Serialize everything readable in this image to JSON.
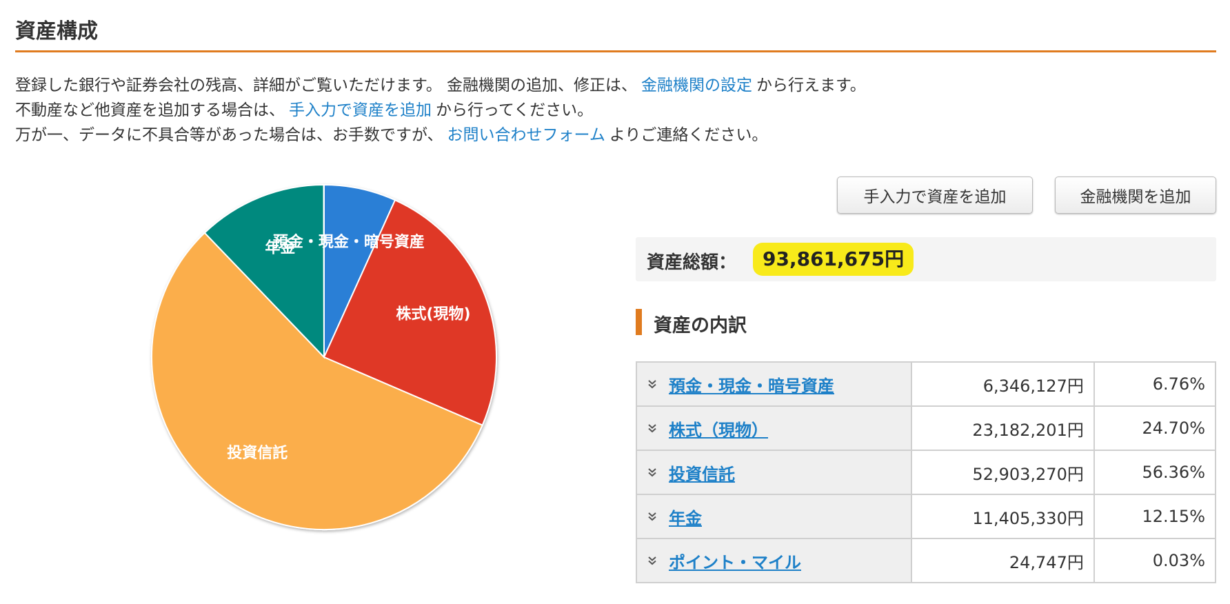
{
  "page": {
    "title": "資産構成"
  },
  "intro": {
    "line1_text": "登録した銀行や証券会社の残高、詳細がご覧いただけます。 金融機関の追加、修正は、",
    "line1_link": "金融機関の設定",
    "line1_after": "から行えます。",
    "line2_text": "不動産など他資産を追加する場合は、",
    "line2_link": "手入力で資産を追加",
    "line2_after": "から行ってください。",
    "line3_text": "万が一、データに不具合等があった場合は、お手数ですが、",
    "line3_link": "お問い合わせフォーム",
    "line3_after": "よりご連絡ください。"
  },
  "buttons": {
    "manual_add": "手入力で資産を追加",
    "bank_add": "金融機関を追加"
  },
  "total": {
    "label": "資産総額：",
    "value": "93,861,675円"
  },
  "breakdown": {
    "title": "資産の内訳",
    "rows": [
      {
        "label": "預金・現金・暗号資産",
        "amount": "6,346,127円",
        "percent": "6.76%"
      },
      {
        "label": "株式（現物）",
        "amount": "23,182,201円",
        "percent": "24.70%"
      },
      {
        "label": "投資信託",
        "amount": "52,903,270円",
        "percent": "56.36%"
      },
      {
        "label": "年金",
        "amount": "11,405,330円",
        "percent": "12.15%"
      },
      {
        "label": "ポイント・マイル",
        "amount": "24,747円",
        "percent": "0.03%"
      }
    ]
  },
  "colors": {
    "accent": "#e07b1f",
    "link": "#1d80c8",
    "highlight": "#f8ea1a"
  },
  "chart_data": {
    "type": "pie",
    "slices": [
      {
        "label": "預金・現金・暗号資産",
        "value": 6.76,
        "color": "#2b7fd6"
      },
      {
        "label": "株式(現物)",
        "value": 24.7,
        "color": "#df3727"
      },
      {
        "label": "投資信託",
        "value": 56.36,
        "color": "#fbae4c"
      },
      {
        "label": "年金",
        "value": 12.15,
        "color": "#00897e"
      },
      {
        "label": "",
        "value": 0.03,
        "color": "#9c55b8"
      }
    ]
  }
}
